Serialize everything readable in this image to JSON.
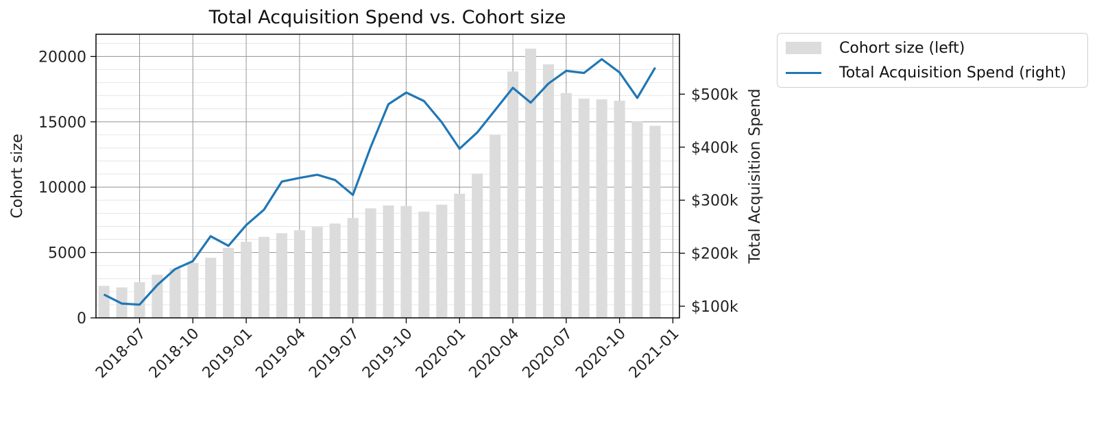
{
  "chart_data": {
    "type": "bar",
    "title": "Total Acquisition Spend vs. Cohort size",
    "xlabel": "",
    "ylabel_left": "Cohort size",
    "ylabel_right": "Total Acquisition Spend",
    "ylim_left": [
      0,
      21700
    ],
    "ylim_right": [
      78000,
      613000
    ],
    "left_ticks": [
      0,
      5000,
      10000,
      15000,
      20000
    ],
    "right_ticks": [
      {
        "value": 100000,
        "label": "$100k"
      },
      {
        "value": 200000,
        "label": "$200k"
      },
      {
        "value": 300000,
        "label": "$300k"
      },
      {
        "value": 400000,
        "label": "$400k"
      },
      {
        "value": 500000,
        "label": "$500k"
      }
    ],
    "x_ticks": [
      "2018-07",
      "2018-10",
      "2019-01",
      "2019-04",
      "2019-07",
      "2019-10",
      "2020-01",
      "2020-04",
      "2020-07",
      "2020-10",
      "2021-01"
    ],
    "x": [
      "2018-05",
      "2018-06",
      "2018-07",
      "2018-08",
      "2018-09",
      "2018-10",
      "2018-11",
      "2018-12",
      "2019-01",
      "2019-02",
      "2019-03",
      "2019-04",
      "2019-05",
      "2019-06",
      "2019-07",
      "2019-08",
      "2019-09",
      "2019-10",
      "2019-11",
      "2019-12",
      "2020-01",
      "2020-02",
      "2020-03",
      "2020-04",
      "2020-05",
      "2020-06",
      "2020-07",
      "2020-08",
      "2020-09",
      "2020-10",
      "2020-11",
      "2020-12"
    ],
    "series": [
      {
        "name": "Cohort size (left)",
        "type": "bar",
        "axis": "left",
        "color": "#dcdcdc",
        "values": [
          2450,
          2330,
          2730,
          3300,
          3770,
          4200,
          4600,
          5350,
          5820,
          6200,
          6480,
          6700,
          6960,
          7220,
          7640,
          8380,
          8600,
          8560,
          8130,
          8660,
          9500,
          11040,
          14020,
          18850,
          20600,
          19400,
          17200,
          16780,
          16720,
          16620,
          15020,
          14700
        ]
      },
      {
        "name": "Total Acquisition Spend (right)",
        "type": "line",
        "axis": "right",
        "color": "#1f77b4",
        "values": [
          122000,
          105000,
          103000,
          140000,
          170000,
          185000,
          232000,
          214000,
          253000,
          282000,
          335000,
          342000,
          348000,
          338000,
          310000,
          400000,
          481000,
          503000,
          487000,
          447000,
          397000,
          428000,
          470000,
          512000,
          484000,
          520000,
          544000,
          540000,
          566000,
          541000,
          493000,
          550000
        ]
      }
    ],
    "bar_width_months": 0.62,
    "grid": true,
    "legend_position": "outside-top-right"
  },
  "legend": {
    "items": [
      {
        "label": "Cohort size (left)",
        "kind": "bar",
        "color": "#dcdcdc"
      },
      {
        "label": "Total Acquisition Spend (right)",
        "kind": "line",
        "color": "#1f77b4"
      }
    ]
  }
}
